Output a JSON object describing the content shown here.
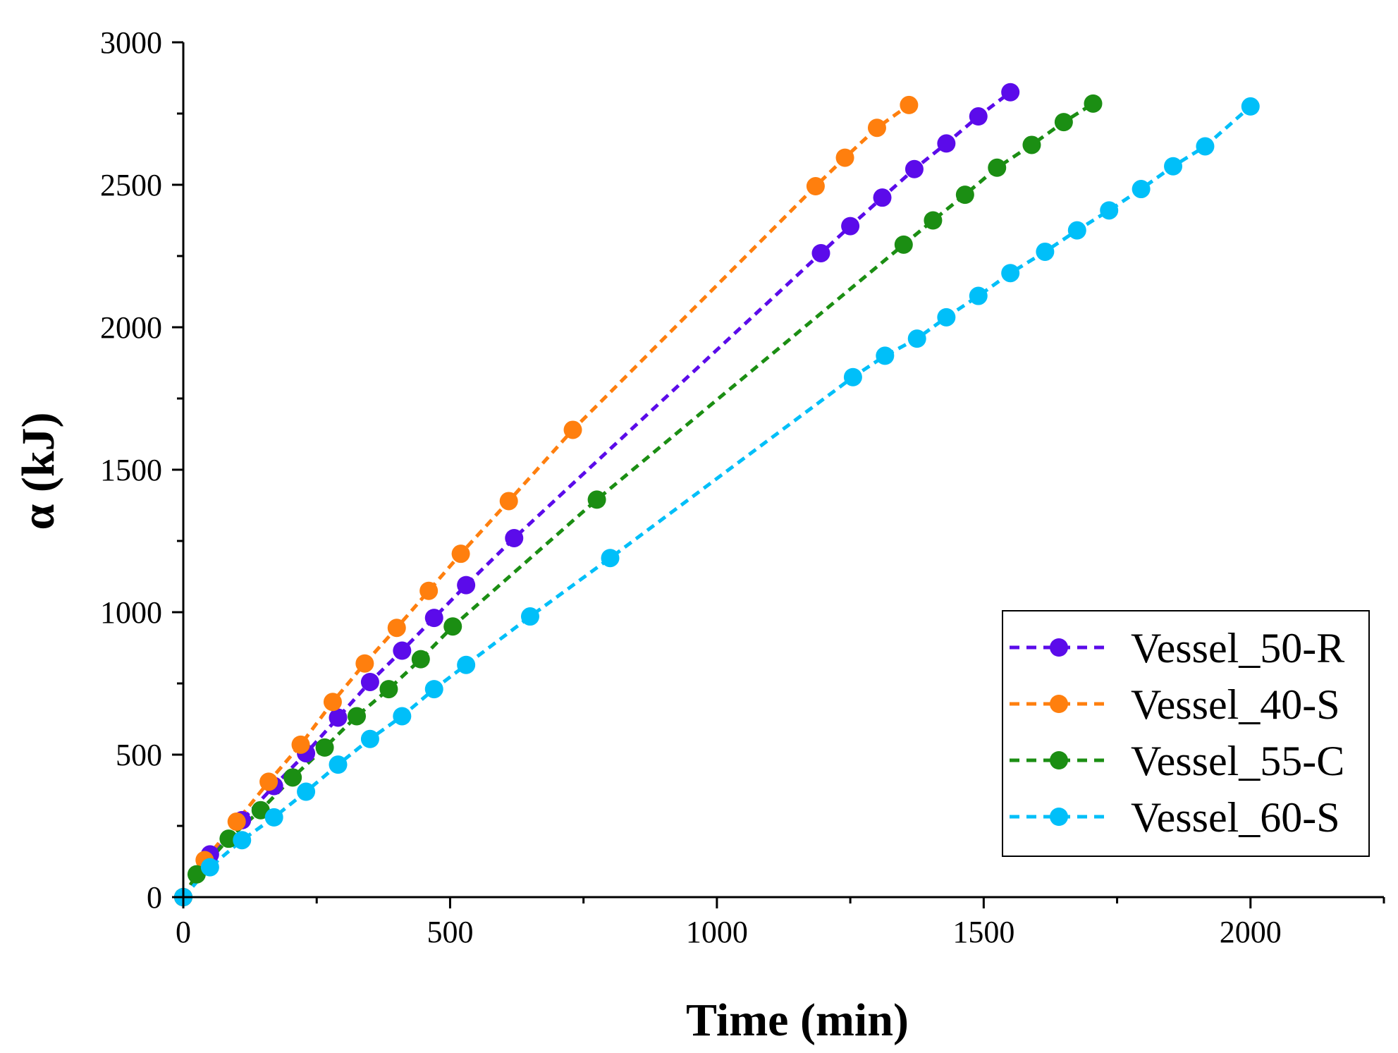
{
  "chart_data": {
    "type": "line",
    "title": "",
    "xlabel": "Time (min)",
    "ylabel": "α (kJ)",
    "xlim": [
      0,
      2250
    ],
    "ylim": [
      0,
      3000
    ],
    "xticks": [
      0,
      500,
      1000,
      1500,
      2000
    ],
    "xtick_labels": [
      "0",
      "500",
      "1000",
      "1500",
      "2000"
    ],
    "yticks": [
      0,
      500,
      1000,
      1500,
      2000,
      2500,
      3000
    ],
    "ytick_labels": [
      "0",
      "500",
      "1000",
      "1500",
      "2000",
      "2500",
      "3000"
    ],
    "legend_position": "bottom-right",
    "grid": false,
    "series": [
      {
        "name": "Vessel_50-R",
        "color": "#5b0bea",
        "x": [
          0,
          50,
          110,
          170,
          230,
          290,
          350,
          410,
          470,
          530,
          620,
          1195,
          1250,
          1310,
          1370,
          1430,
          1490,
          1550
        ],
        "y": [
          0,
          150,
          270,
          390,
          505,
          630,
          755,
          865,
          980,
          1095,
          1260,
          2260,
          2355,
          2455,
          2555,
          2645,
          2740,
          2825
        ]
      },
      {
        "name": "Vessel_40-S",
        "color": "#ff7f0e",
        "x": [
          0,
          40,
          100,
          160,
          220,
          280,
          340,
          400,
          460,
          520,
          610,
          730,
          1185,
          1240,
          1300,
          1360
        ],
        "y": [
          0,
          130,
          265,
          405,
          535,
          685,
          820,
          945,
          1075,
          1205,
          1390,
          1640,
          2495,
          2595,
          2700,
          2780
        ]
      },
      {
        "name": "Vessel_55-C",
        "color": "#1b8e13",
        "x": [
          0,
          25,
          85,
          145,
          205,
          265,
          325,
          385,
          445,
          505,
          775,
          1350,
          1405,
          1465,
          1525,
          1590,
          1650,
          1705
        ],
        "y": [
          0,
          80,
          205,
          305,
          420,
          525,
          635,
          730,
          835,
          950,
          1395,
          2290,
          2375,
          2465,
          2560,
          2640,
          2720,
          2785
        ]
      },
      {
        "name": "Vessel_60-S",
        "color": "#00bff9",
        "x": [
          0,
          50,
          110,
          170,
          230,
          290,
          350,
          410,
          470,
          530,
          650,
          800,
          1255,
          1315,
          1375,
          1430,
          1490,
          1550,
          1615,
          1675,
          1735,
          1795,
          1855,
          1915,
          2000
        ],
        "y": [
          0,
          105,
          200,
          280,
          370,
          465,
          555,
          635,
          730,
          815,
          985,
          1190,
          1825,
          1900,
          1960,
          2035,
          2110,
          2190,
          2265,
          2340,
          2410,
          2485,
          2565,
          2635,
          2775
        ]
      }
    ]
  }
}
